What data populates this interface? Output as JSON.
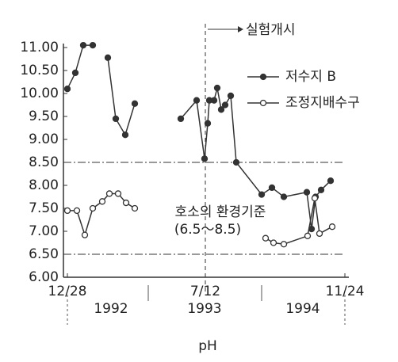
{
  "chart_data": {
    "type": "line",
    "xlabel": "pH",
    "annotations": {
      "start": "실험개시",
      "standard": "호소의 환경기준",
      "standard_range": "(6.5～8.5)"
    },
    "x_groups": [
      "1992",
      "1993",
      "1994"
    ],
    "xlim": [
      0,
      1050
    ],
    "xticks": [
      {
        "value": 0,
        "label": "12/28"
      },
      {
        "value": 522,
        "label": "7/12"
      },
      {
        "value": 1050,
        "label": "11/24"
      }
    ],
    "ylim": [
      6,
      11
    ],
    "yticks": [
      {
        "value": 6,
        "label": "6.00"
      },
      {
        "value": 6.5,
        "label": "6.50"
      },
      {
        "value": 7,
        "label": "7.00"
      },
      {
        "value": 7.5,
        "label": "7.50"
      },
      {
        "value": 8,
        "label": "8.00"
      },
      {
        "value": 8.5,
        "label": "8.50"
      },
      {
        "value": 9,
        "label": "9.00"
      },
      {
        "value": 9.5,
        "label": "9.50"
      },
      {
        "value": 10,
        "label": "10.00"
      },
      {
        "value": 10.5,
        "label": "10.50"
      },
      {
        "value": 11,
        "label": "11.00"
      }
    ],
    "reference_lines": [
      8.5,
      6.5
    ],
    "series": [
      {
        "name": "저수지 B",
        "color": "#333333",
        "marker": "filled",
        "x": [
          0,
          30,
          60,
          96,
          null,
          153,
          183,
          219,
          255,
          null,
          429,
          489,
          519,
          531,
          537,
          555,
          567,
          582,
          597,
          618,
          639,
          735,
          774,
          819,
          906,
          924,
          939,
          960,
          996
        ],
        "values": [
          10.1,
          10.45,
          11.05,
          11.05,
          null,
          10.78,
          9.45,
          9.1,
          9.78,
          null,
          9.45,
          9.85,
          8.58,
          9.35,
          9.85,
          9.85,
          10.12,
          9.65,
          9.75,
          9.95,
          8.5,
          7.8,
          7.95,
          7.75,
          7.85,
          7.05,
          7.75,
          7.9,
          8.1
        ]
      },
      {
        "name": "조정지배수구",
        "color": "#333333",
        "marker": "open",
        "x": [
          0,
          36,
          66,
          96,
          132,
          159,
          192,
          222,
          255,
          null,
          750,
          780,
          819,
          909,
          936,
          954,
          1002
        ],
        "values": [
          7.45,
          7.45,
          6.92,
          7.5,
          7.65,
          7.82,
          7.82,
          7.62,
          7.5,
          null,
          6.85,
          6.75,
          6.72,
          6.9,
          7.72,
          6.95,
          7.1
        ]
      }
    ]
  }
}
